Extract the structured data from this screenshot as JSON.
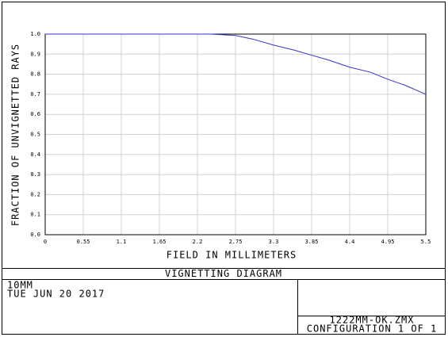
{
  "chart_data": {
    "type": "line",
    "x_label": "FIELD IN MILLIMETERS",
    "y_label": "FRACTION OF UNVIGNETTED RAYS",
    "x": [
      0,
      0.55,
      1.1,
      1.65,
      2.2,
      2.4,
      2.75,
      3.0,
      3.3,
      3.6,
      3.85,
      4.1,
      4.4,
      4.7,
      4.95,
      5.2,
      5.5
    ],
    "series": [
      {
        "color": "#3333cc",
        "values": [
          1.0,
          1.0,
          1.0,
          1.0,
          1.0,
          1.0,
          0.993,
          0.975,
          0.945,
          0.92,
          0.895,
          0.87,
          0.835,
          0.81,
          0.775,
          0.745,
          0.7
        ]
      }
    ],
    "xlim": [
      0,
      5.5
    ],
    "ylim": [
      0,
      1
    ],
    "xticks": [
      0,
      0.55,
      1.1,
      1.65,
      2.2,
      2.75,
      3.3,
      3.85,
      4.4,
      4.95,
      5.5
    ],
    "yticks": [
      {
        "value": 0,
        "label": "0.0"
      },
      0.1,
      0.2,
      0.3,
      0.4,
      0.5,
      0.6,
      0.7,
      0.8,
      0.9,
      {
        "value": 1,
        "label": "1.0"
      }
    ],
    "grid": true
  },
  "footer": {
    "title": "VIGNETTING DIAGRAM",
    "lens": "10MM",
    "date": "TUE JUN 20 2017",
    "file": "1222MM-OK.ZMX",
    "configuration": "CONFIGURATION 1 OF 1"
  }
}
